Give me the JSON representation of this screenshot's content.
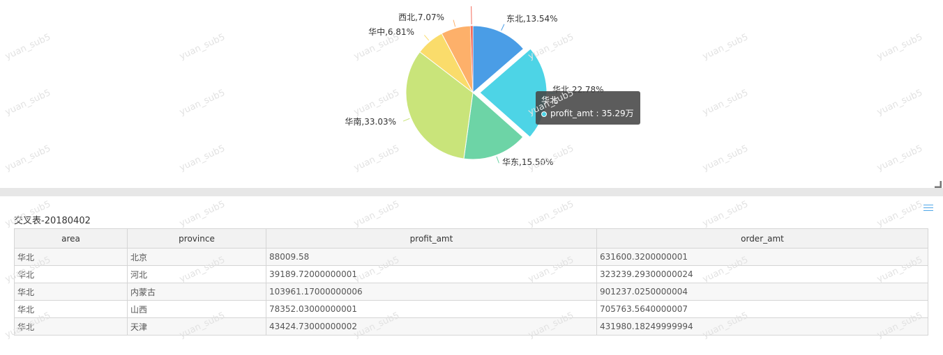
{
  "chart_data": {
    "type": "pie",
    "categories": [
      "东北",
      "华北",
      "华东",
      "华南",
      "华中",
      "西北"
    ],
    "values": [
      13.54,
      22.78,
      15.5,
      33.03,
      6.81,
      7.07
    ],
    "labels": [
      "东北,13.54%",
      "华北,22.78%",
      "华东,15.50%",
      "华南,33.03%",
      "华中,6.81%",
      "西北,7.07%"
    ],
    "colors": [
      "#4a9de6",
      "#4dd4e6",
      "#6dd4a6",
      "#c9e47a",
      "#fadc6b",
      "#fdb06a"
    ],
    "extra_slice": {
      "value": 0.6,
      "color": "#f36b5b"
    },
    "highlighted": "华北"
  },
  "tooltip": {
    "name": "华北",
    "text": "profit_amt : 35.29万"
  },
  "table": {
    "title": "交叉表-20180402",
    "headers": [
      "area",
      "province",
      "profit_amt",
      "order_amt"
    ],
    "rows": [
      [
        "华北",
        "北京",
        "88009.58",
        "631600.3200000001"
      ],
      [
        "华北",
        "河北",
        "39189.72000000001",
        "323239.29300000024"
      ],
      [
        "华北",
        "内蒙古",
        "103961.17000000006",
        "901237.0250000004"
      ],
      [
        "华北",
        "山西",
        "78352.03000000001",
        "705763.5640000007"
      ],
      [
        "华北",
        "天津",
        "43424.73000000002",
        "431980.18249999994"
      ]
    ]
  },
  "watermark": "yuan_sub5"
}
